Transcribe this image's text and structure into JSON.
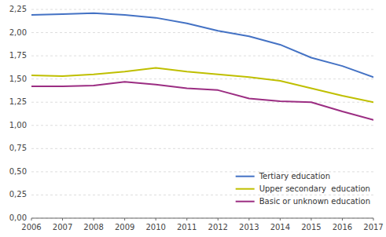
{
  "chart_data": {
    "type": "line",
    "x": [
      2006,
      2007,
      2008,
      2009,
      2010,
      2011,
      2012,
      2013,
      2014,
      2015,
      2016,
      2017
    ],
    "xlim": [
      2006,
      2017
    ],
    "xticks": [
      2006,
      2007,
      2008,
      2009,
      2010,
      2011,
      2012,
      2013,
      2014,
      2015,
      2016,
      2017
    ],
    "ylim": [
      0.0,
      2.25
    ],
    "yticks": [
      {
        "value": 0.0,
        "label": "0,00"
      },
      {
        "value": 0.25,
        "label": "0,25"
      },
      {
        "value": 0.5,
        "label": "0,50"
      },
      {
        "value": 0.75,
        "label": "0,75"
      },
      {
        "value": 1.0,
        "label": "1,00"
      },
      {
        "value": 1.25,
        "label": "1,25"
      },
      {
        "value": 1.5,
        "label": "1,50"
      },
      {
        "value": 1.75,
        "label": "1,75"
      },
      {
        "value": 2.0,
        "label": "2,00"
      },
      {
        "value": 2.25,
        "label": "2,25"
      }
    ],
    "grid": true,
    "legend": "lower right",
    "series": [
      {
        "name": "Tertiary education",
        "color": "#4472C4",
        "values": [
          2.19,
          2.2,
          2.21,
          2.19,
          2.16,
          2.1,
          2.02,
          1.96,
          1.87,
          1.73,
          1.64,
          1.52
        ]
      },
      {
        "name": "Upper secondary  education",
        "color": "#BFBF00",
        "values": [
          1.54,
          1.53,
          1.55,
          1.58,
          1.62,
          1.58,
          1.55,
          1.52,
          1.48,
          1.4,
          1.32,
          1.25
        ]
      },
      {
        "name": "Basic or unknown education",
        "color": "#9B2D82",
        "values": [
          1.42,
          1.42,
          1.43,
          1.47,
          1.44,
          1.4,
          1.38,
          1.29,
          1.26,
          1.25,
          1.15,
          1.06
        ]
      }
    ]
  }
}
